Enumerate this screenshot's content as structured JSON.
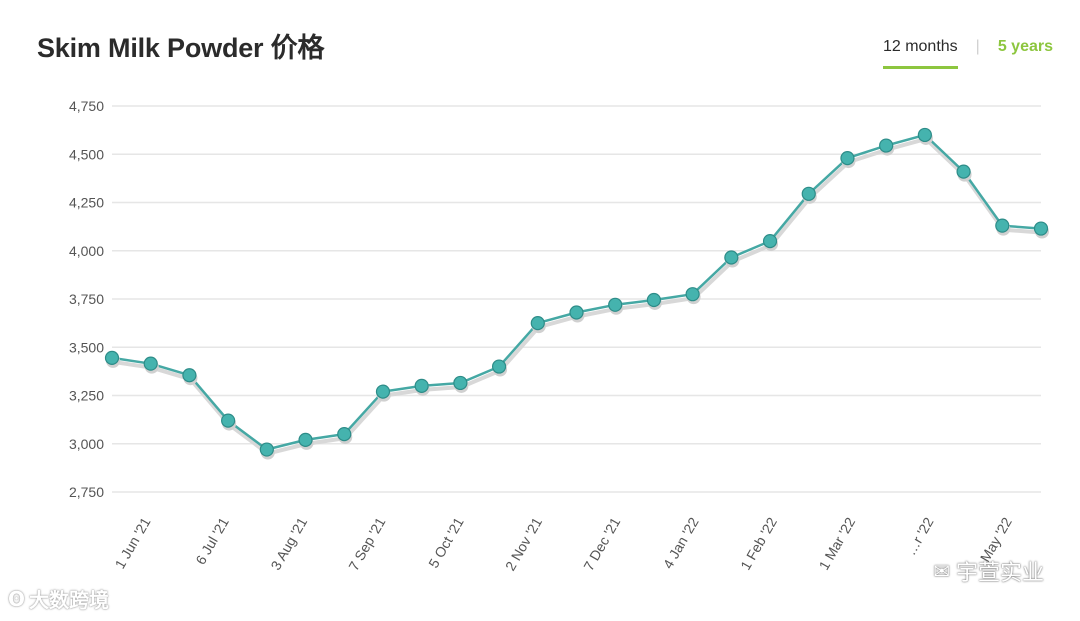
{
  "header": {
    "title": "Skim Milk Powder 价格",
    "tabs": [
      {
        "label": "12 months",
        "active": true
      },
      {
        "label": "5 years",
        "active": false
      }
    ]
  },
  "watermarks": {
    "left": "大数跨境",
    "right": "宇萱实业"
  },
  "colors": {
    "line": "#45a8a4",
    "marker": "#45b3ae",
    "marker_edge": "#2d8c88",
    "grid": "#e6e6e6",
    "tab_accent": "#8dc63f"
  },
  "chart_data": {
    "type": "line",
    "title": "",
    "xlabel": "",
    "ylabel": "",
    "ylim": [
      2750,
      4750
    ],
    "yticks": [
      2750,
      3000,
      3250,
      3500,
      3750,
      4000,
      4250,
      4500,
      4750
    ],
    "ytick_labels": [
      "2,750",
      "3,000",
      "3,250",
      "3,500",
      "3,750",
      "4,000",
      "4,250",
      "4,500",
      "4,750"
    ],
    "xtick_labels": [
      "1 Jun '21",
      "6 Jul '21",
      "3 Aug '21",
      "7 Sep '21",
      "5 Oct '21",
      "2 Nov '21",
      "7 Dec '21",
      "4 Jan '22",
      "1 Feb '22",
      "1 Mar '22",
      "…r '22",
      "May '22"
    ],
    "grid": true,
    "legend": "none",
    "series": [
      {
        "values": [
          3445,
          3415,
          3355,
          3120,
          2970,
          3020,
          3050,
          3270,
          3300,
          3315,
          3400,
          3625,
          3680,
          3720,
          3745,
          3775,
          3965,
          4050,
          4295,
          4480,
          4545,
          4600,
          4410,
          4130,
          4115
        ]
      }
    ]
  }
}
